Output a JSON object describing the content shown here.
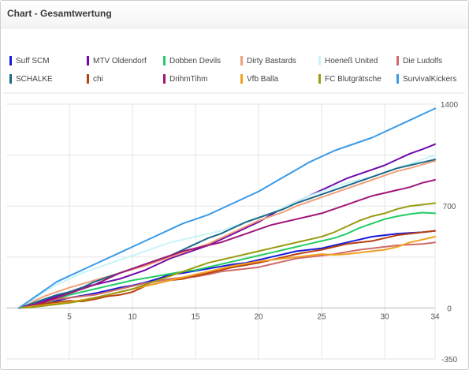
{
  "panel": {
    "title": "Chart - Gesamtwertung"
  },
  "chart_data": {
    "type": "line",
    "x": [
      1,
      2,
      3,
      4,
      5,
      6,
      7,
      8,
      9,
      10,
      11,
      12,
      13,
      14,
      15,
      16,
      17,
      18,
      19,
      20,
      21,
      22,
      23,
      24,
      25,
      26,
      27,
      28,
      29,
      30,
      31,
      32,
      33,
      34
    ],
    "x_ticks": [
      5,
      10,
      15,
      20,
      25,
      30,
      34
    ],
    "y_ticks": [
      1400,
      700,
      0,
      -350
    ],
    "ylim": [
      -350,
      1400
    ],
    "grid": true,
    "legend_position": "top",
    "series": [
      {
        "name": "Suff SCM",
        "color": "#1a1adb",
        "values": [
          0,
          15,
          30,
          50,
          70,
          85,
          100,
          120,
          140,
          155,
          175,
          200,
          230,
          240,
          255,
          270,
          285,
          300,
          310,
          330,
          350,
          370,
          390,
          400,
          410,
          430,
          450,
          470,
          490,
          500,
          510,
          515,
          520,
          530
        ]
      },
      {
        "name": "MTV Oldendorf",
        "color": "#6f0aa8",
        "values": [
          0,
          20,
          50,
          80,
          110,
          140,
          160,
          180,
          200,
          230,
          260,
          300,
          340,
          370,
          400,
          430,
          470,
          510,
          550,
          590,
          640,
          690,
          730,
          770,
          810,
          850,
          890,
          920,
          950,
          980,
          1020,
          1060,
          1090,
          1125
        ]
      },
      {
        "name": "Dobben Devils",
        "color": "#22cc66",
        "values": [
          0,
          10,
          30,
          60,
          90,
          110,
          130,
          150,
          170,
          190,
          205,
          220,
          235,
          250,
          260,
          280,
          300,
          320,
          340,
          360,
          380,
          400,
          420,
          440,
          460,
          480,
          510,
          550,
          580,
          610,
          630,
          645,
          655,
          650
        ]
      },
      {
        "name": "Dirty Bastards",
        "color": "#f0a07a",
        "values": [
          0,
          40,
          80,
          110,
          140,
          165,
          190,
          215,
          240,
          265,
          290,
          320,
          350,
          380,
          410,
          440,
          480,
          520,
          560,
          600,
          630,
          660,
          700,
          730,
          760,
          790,
          820,
          850,
          880,
          910,
          940,
          960,
          985,
          1010
        ]
      },
      {
        "name": "Hoeneß United",
        "color": "#c8f4f8",
        "values": [
          0,
          50,
          110,
          160,
          200,
          240,
          270,
          300,
          330,
          360,
          390,
          420,
          450,
          470,
          490,
          510,
          530,
          560,
          590,
          620,
          650,
          690,
          730,
          770,
          800,
          830,
          860,
          880,
          900,
          930,
          960,
          990,
          1020,
          1050
        ]
      },
      {
        "name": "Die Ludolfs",
        "color": "#d06a6a",
        "values": [
          0,
          20,
          40,
          60,
          70,
          80,
          90,
          110,
          130,
          150,
          170,
          185,
          200,
          210,
          215,
          230,
          250,
          260,
          270,
          280,
          300,
          320,
          340,
          350,
          360,
          370,
          385,
          400,
          410,
          420,
          430,
          435,
          440,
          450
        ]
      },
      {
        "name": "SCHALKE",
        "color": "#1a6a8a",
        "values": [
          0,
          30,
          60,
          90,
          110,
          140,
          180,
          210,
          240,
          270,
          300,
          330,
          360,
          400,
          440,
          480,
          510,
          550,
          590,
          620,
          650,
          680,
          720,
          750,
          780,
          810,
          840,
          870,
          900,
          930,
          960,
          980,
          1000,
          1020
        ]
      },
      {
        "name": "chi",
        "color": "#b84010",
        "values": [
          0,
          10,
          30,
          40,
          50,
          45,
          60,
          80,
          90,
          110,
          150,
          170,
          190,
          200,
          220,
          240,
          260,
          280,
          295,
          310,
          330,
          350,
          370,
          385,
          400,
          420,
          440,
          450,
          460,
          480,
          500,
          510,
          520,
          530
        ]
      },
      {
        "name": "DrihmTihm",
        "color": "#a0167a",
        "values": [
          0,
          20,
          40,
          70,
          100,
          130,
          160,
          200,
          240,
          270,
          300,
          330,
          360,
          390,
          410,
          430,
          450,
          480,
          510,
          540,
          570,
          590,
          610,
          630,
          650,
          680,
          710,
          740,
          770,
          790,
          810,
          830,
          860,
          880
        ]
      },
      {
        "name": "Vfb Balla",
        "color": "#f0a020",
        "values": [
          0,
          10,
          20,
          30,
          40,
          55,
          70,
          90,
          110,
          130,
          150,
          170,
          190,
          210,
          230,
          250,
          270,
          290,
          305,
          320,
          330,
          340,
          350,
          360,
          370,
          365,
          370,
          380,
          390,
          400,
          420,
          450,
          470,
          490
        ]
      },
      {
        "name": "FC Blutgrätsche",
        "color": "#9a9a10",
        "values": [
          0,
          5,
          15,
          25,
          35,
          50,
          70,
          90,
          110,
          130,
          160,
          190,
          220,
          250,
          280,
          310,
          330,
          350,
          370,
          390,
          410,
          430,
          450,
          470,
          490,
          520,
          560,
          600,
          630,
          650,
          680,
          700,
          710,
          720
        ]
      },
      {
        "name": "SurvivalKickers",
        "color": "#3a9ae8",
        "values": [
          0,
          60,
          120,
          180,
          220,
          260,
          300,
          340,
          380,
          420,
          460,
          500,
          540,
          580,
          610,
          640,
          680,
          720,
          760,
          800,
          850,
          900,
          950,
          1000,
          1040,
          1080,
          1110,
          1140,
          1170,
          1210,
          1250,
          1290,
          1330,
          1370
        ]
      }
    ]
  }
}
